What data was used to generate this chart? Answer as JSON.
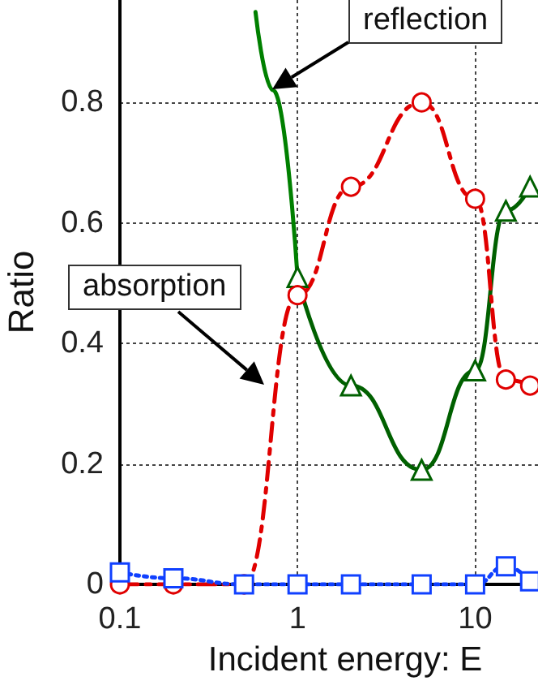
{
  "chart_data": {
    "type": "line",
    "xlabel": "Incident energy: E",
    "ylabel": "Ratio",
    "xlim": [
      0.1,
      22.6
    ],
    "xticks": [
      0.1,
      1,
      10
    ],
    "ylim": [
      0,
      0.97
    ],
    "yticks": [
      0,
      0.2,
      0.4,
      0.6,
      0.8
    ],
    "log": "x",
    "grid": true,
    "series": [
      {
        "color": "#008000",
        "x": [
          0.58,
          0.73,
          1
        ],
        "values": [
          0.95,
          0.82,
          0.51
        ],
        "marker": "none",
        "line_style": "solid"
      },
      {
        "color": "#006000",
        "x": [
          1,
          2,
          5,
          10,
          14.9,
          20.4
        ],
        "values": [
          0.51,
          0.33,
          0.19,
          0.355,
          0.62,
          0.66
        ],
        "marker": "triangle",
        "line_style": "solid"
      },
      {
        "color": "#e00000",
        "x": [
          0.1,
          0.2,
          0.5,
          1,
          2,
          5,
          10,
          14.9,
          20.4
        ],
        "values": [
          0,
          0,
          0,
          0.48,
          0.66,
          0.8,
          0.64,
          0.34,
          0.33
        ],
        "marker": "circle",
        "line_style": "dashed"
      },
      {
        "color": "#1040ff",
        "x": [
          0.1,
          0.2,
          0.5,
          1,
          2,
          5,
          10,
          14.9,
          20.4
        ],
        "values": [
          0.02,
          0.01,
          0,
          0,
          0,
          0,
          0,
          0.03,
          0.005
        ],
        "marker": "square",
        "line_style": "dotted"
      }
    ],
    "annotations": [
      "reflection",
      "absorption"
    ]
  }
}
